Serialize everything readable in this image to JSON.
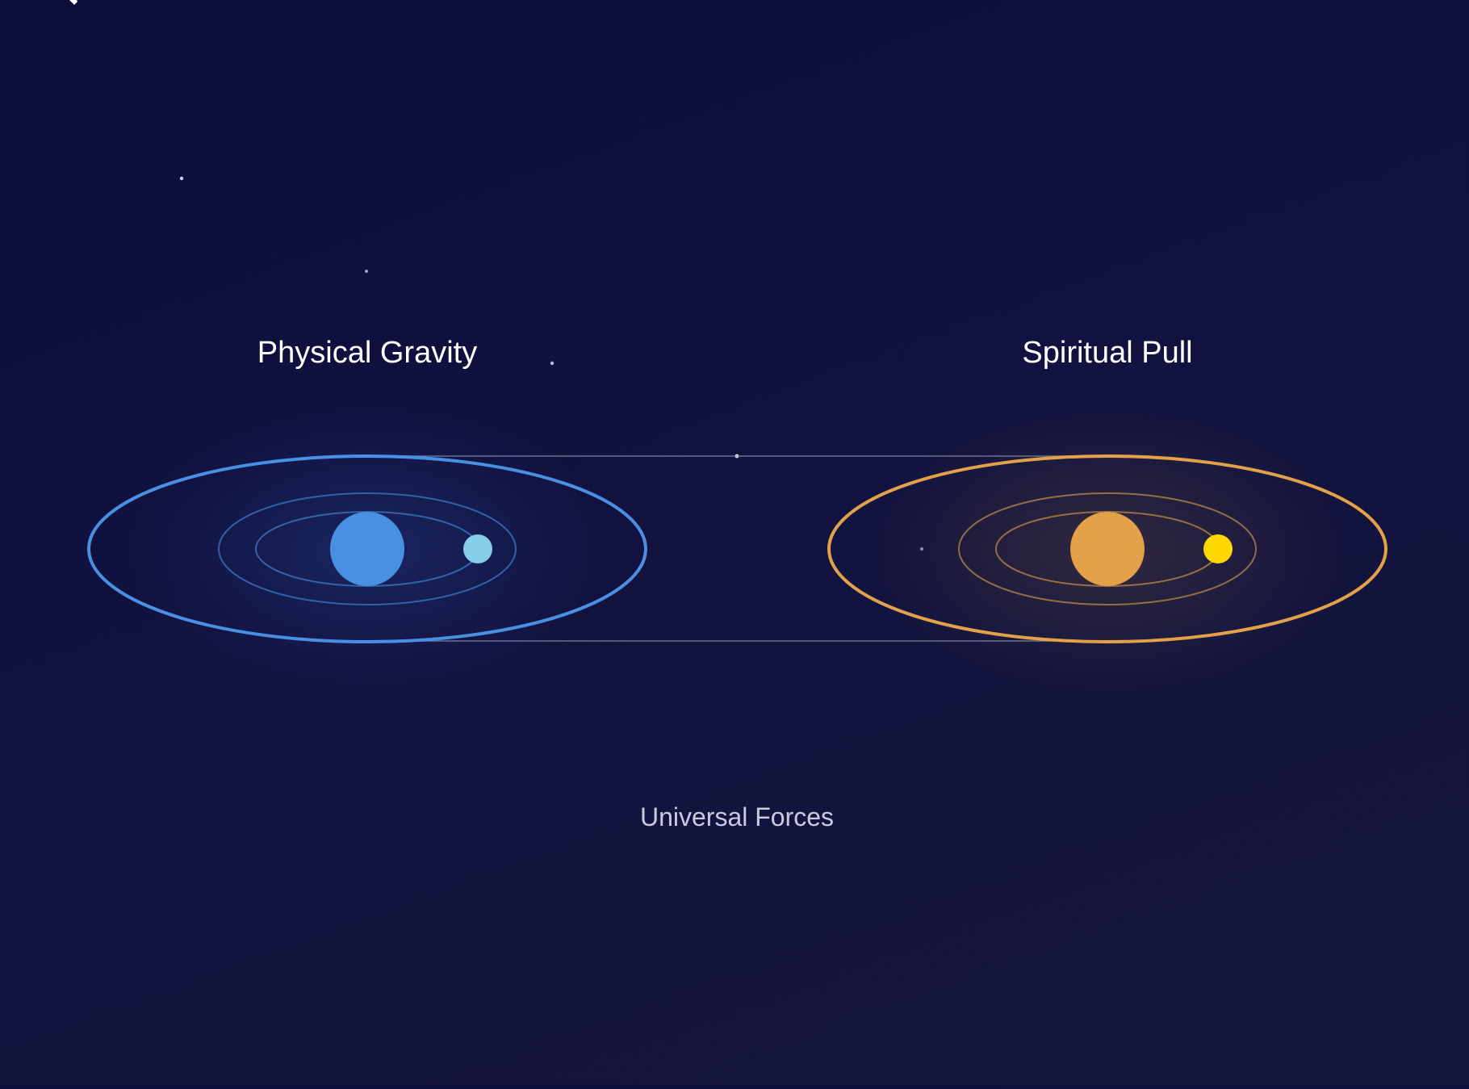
{
  "diagram": {
    "left_system": {
      "title": "Physical Gravity",
      "orbit_color": "#4a90e2",
      "body_color": "#4a90e2",
      "satellite_color": "#87ceeb"
    },
    "right_system": {
      "title": "Spiritual Pull",
      "orbit_color": "#e3a14a",
      "body_color": "#e3a14a",
      "satellite_color": "#ffd700"
    },
    "connector_color": "#8a8fa8",
    "caption": "Universal Forces",
    "background_colors": [
      "#0b0d3a",
      "#15163d"
    ]
  }
}
